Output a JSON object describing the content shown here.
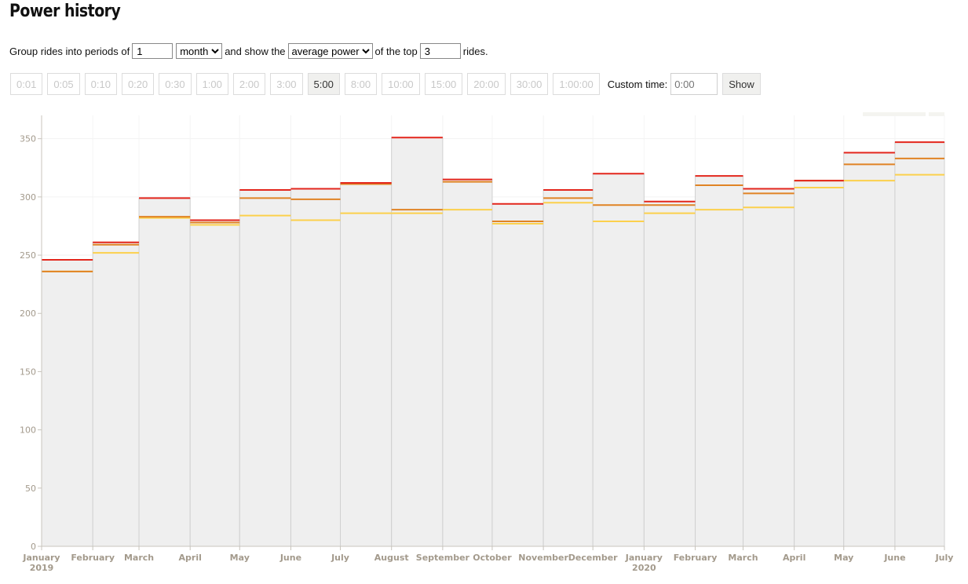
{
  "title": "Power history",
  "controls": {
    "group_prefix": "Group rides into periods of",
    "period_count": "1",
    "period_unit": "month",
    "show_prefix": "and show the",
    "metric": "average power",
    "top_prefix": "of the top",
    "top_count": "3",
    "rides_suffix": "rides."
  },
  "durations": [
    "0:01",
    "0:05",
    "0:10",
    "0:20",
    "0:30",
    "1:00",
    "2:00",
    "3:00",
    "5:00",
    "8:00",
    "10:00",
    "15:00",
    "20:00",
    "30:00",
    "1:00:00"
  ],
  "active_duration": "5:00",
  "custom": {
    "label": "Custom time:",
    "placeholder": "0:00",
    "button": "Show"
  },
  "colors": {
    "rank1": "#e3261c",
    "rank2": "#e08324",
    "rank3": "#fcd04c",
    "bar_fill": "#efefef",
    "bar_edge": "#d0d0d0",
    "axis": "#a39a8c"
  },
  "chart_data": {
    "type": "bar",
    "categories": [
      "January",
      "February",
      "March",
      "April",
      "May",
      "June",
      "July",
      "August",
      "September",
      "October",
      "November",
      "December",
      "January",
      "February",
      "March",
      "April",
      "May",
      "June"
    ],
    "x_ticks": [
      {
        "label": "January",
        "sub": "2019"
      },
      {
        "label": "February"
      },
      {
        "label": "March"
      },
      {
        "label": "April"
      },
      {
        "label": "May"
      },
      {
        "label": "June"
      },
      {
        "label": "July"
      },
      {
        "label": "August"
      },
      {
        "label": "September"
      },
      {
        "label": "October"
      },
      {
        "label": "November"
      },
      {
        "label": "December"
      },
      {
        "label": "January",
        "sub": "2020"
      },
      {
        "label": "February"
      },
      {
        "label": "March"
      },
      {
        "label": "April"
      },
      {
        "label": "May"
      },
      {
        "label": "June"
      },
      {
        "label": "July"
      }
    ],
    "x_days": [
      0,
      31,
      59,
      90,
      120,
      151,
      181,
      212,
      243,
      273,
      304,
      334,
      365,
      396,
      425,
      456,
      486,
      517,
      547
    ],
    "series": [
      {
        "values": [
          246,
          261,
          299,
          280,
          306,
          307,
          312,
          351,
          315,
          294,
          306,
          320,
          296,
          318,
          307,
          314,
          338,
          347
        ]
      },
      {
        "values": [
          236,
          259,
          283,
          278,
          299,
          298,
          311,
          289,
          313,
          279,
          299,
          293,
          293,
          310,
          303,
          314,
          328,
          333
        ]
      },
      {
        "values": [
          236,
          252,
          282,
          276,
          284,
          280,
          286,
          286,
          289,
          277,
          295,
          279,
          286,
          289,
          291,
          308,
          314,
          319
        ]
      }
    ],
    "ylim": [
      0,
      370
    ],
    "yticks": [
      0,
      50,
      100,
      150,
      200,
      250,
      300,
      350
    ],
    "grid": true
  }
}
